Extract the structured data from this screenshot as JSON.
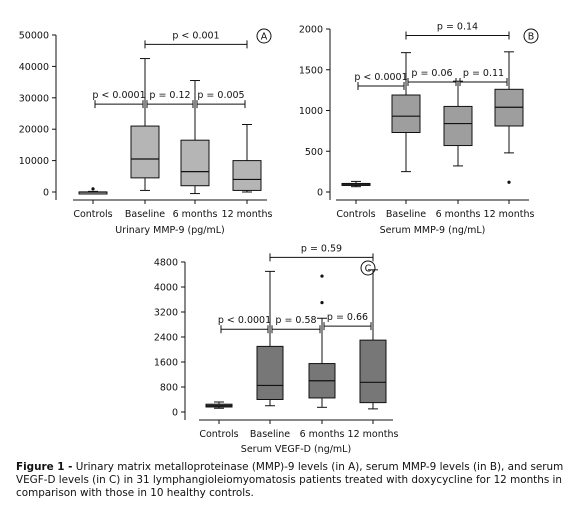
{
  "chart_data": [
    {
      "type": "box",
      "panel_label": "A",
      "categories": [
        "Controls",
        "Baseline",
        "6 months",
        "12 months"
      ],
      "xlabel": "Urinary MMP-9 (pg/mL)",
      "ylabel": "",
      "ylim": [
        0,
        50000
      ],
      "yticks": [
        0,
        10000,
        20000,
        30000,
        40000,
        50000
      ],
      "box_fill": "#b5b5b5",
      "boxes": [
        {
          "whislo": 0,
          "q1": 0,
          "med": 0,
          "q3": 0,
          "whishi": 200,
          "fliers": [
            1000
          ]
        },
        {
          "whislo": 500,
          "q1": 4500,
          "med": 10500,
          "q3": 21000,
          "whishi": 42500,
          "fliers": []
        },
        {
          "whislo": -500,
          "q1": 2000,
          "med": 6500,
          "q3": 16500,
          "whishi": 35500,
          "fliers": []
        },
        {
          "whislo": 0,
          "q1": 500,
          "med": 4000,
          "q3": 10000,
          "whishi": 21500,
          "fliers": []
        }
      ],
      "comparisons": [
        {
          "from": 0,
          "to": 1,
          "label": "p < 0.0001",
          "y": 28000
        },
        {
          "from": 1,
          "to": 2,
          "label": "p = 0.12",
          "y": 28000
        },
        {
          "from": 2,
          "to": 3,
          "label": "p = 0.005",
          "y": 28000
        },
        {
          "from": 1,
          "to": 3,
          "label": "p < 0.001",
          "y": 47000
        }
      ]
    },
    {
      "type": "box",
      "panel_label": "B",
      "categories": [
        "Controls",
        "Baseline",
        "6 months",
        "12 months"
      ],
      "xlabel": "Serum MMP-9 (ng/mL)",
      "ylabel": "",
      "ylim": [
        0,
        2000
      ],
      "yticks": [
        0,
        500,
        1000,
        1500,
        2000
      ],
      "box_fill": "#9e9e9e",
      "boxes": [
        {
          "whislo": 65,
          "q1": 80,
          "med": 95,
          "q3": 105,
          "whishi": 130,
          "fliers": []
        },
        {
          "whislo": 250,
          "q1": 730,
          "med": 930,
          "q3": 1190,
          "whishi": 1710,
          "fliers": []
        },
        {
          "whislo": 320,
          "q1": 570,
          "med": 840,
          "q3": 1050,
          "whishi": 1360,
          "fliers": []
        },
        {
          "whislo": 480,
          "q1": 810,
          "med": 1040,
          "q3": 1260,
          "whishi": 1720,
          "fliers": [
            120
          ]
        }
      ],
      "comparisons": [
        {
          "from": 0,
          "to": 1,
          "label": "p < 0.0001",
          "y": 1300
        },
        {
          "from": 1,
          "to": 2,
          "label": "p = 0.06",
          "y": 1350
        },
        {
          "from": 2,
          "to": 3,
          "label": "p = 0.11",
          "y": 1350
        },
        {
          "from": 1,
          "to": 3,
          "label": "p = 0.14",
          "y": 1920
        }
      ]
    },
    {
      "type": "box",
      "panel_label": "C",
      "categories": [
        "Controls",
        "Baseline",
        "6 months",
        "12 months"
      ],
      "xlabel": "Serum VEGF-D (ng/mL)",
      "ylabel": "",
      "ylim": [
        0,
        4800
      ],
      "yticks": [
        0,
        800,
        1600,
        2400,
        3200,
        4000,
        4800
      ],
      "box_fill": "#777777",
      "boxes": [
        {
          "whislo": 120,
          "q1": 160,
          "med": 200,
          "q3": 250,
          "whishi": 320,
          "fliers": []
        },
        {
          "whislo": 200,
          "q1": 400,
          "med": 850,
          "q3": 2100,
          "whishi": 4500,
          "fliers": []
        },
        {
          "whislo": 150,
          "q1": 450,
          "med": 1000,
          "q3": 1550,
          "whishi": 3000,
          "fliers": [
            3500,
            4350
          ]
        },
        {
          "whislo": 100,
          "q1": 300,
          "med": 950,
          "q3": 2300,
          "whishi": 4550,
          "fliers": []
        }
      ],
      "comparisons": [
        {
          "from": 0,
          "to": 1,
          "label": "p < 0.0001",
          "y": 2650
        },
        {
          "from": 1,
          "to": 2,
          "label": "p = 0.58",
          "y": 2650
        },
        {
          "from": 2,
          "to": 3,
          "label": "p = 0.66",
          "y": 2750
        },
        {
          "from": 1,
          "to": 3,
          "label": "p = 0.59",
          "y": 4950
        }
      ]
    }
  ],
  "caption": {
    "lead": "Figure 1 -",
    "text": " Urinary matrix metalloproteinase (MMP)-9 levels (in A), serum MMP-9 levels (in B), and serum VEGF-D levels (in C) in 31 lymphangioleiomyomatosis patients treated with doxycycline for 12 months in comparison with those in 10 healthy controls."
  }
}
